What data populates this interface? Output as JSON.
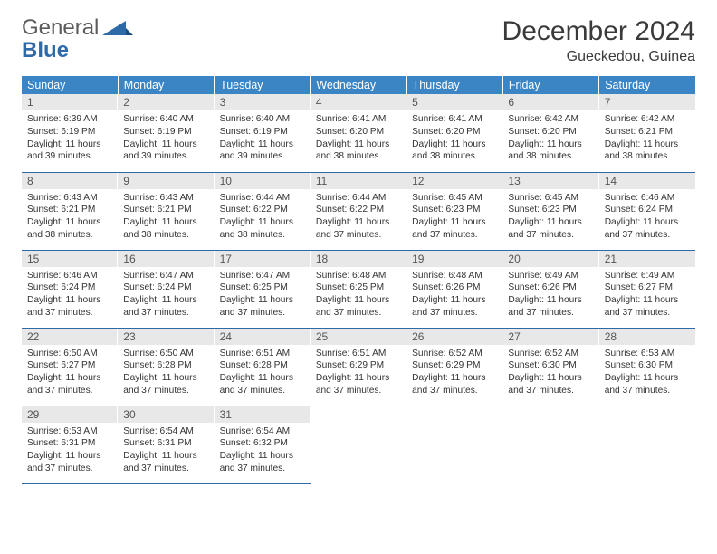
{
  "brand": {
    "line1": "General",
    "line2": "Blue"
  },
  "colors": {
    "header_bg": "#3b85c5",
    "rule": "#2f6aa8",
    "daynum_bg": "#e8e8e8",
    "logo_gray": "#5b5b5b",
    "logo_blue": "#2f6aa8"
  },
  "title": "December 2024",
  "location": "Gueckedou, Guinea",
  "days_of_week": [
    "Sunday",
    "Monday",
    "Tuesday",
    "Wednesday",
    "Thursday",
    "Friday",
    "Saturday"
  ],
  "weeks": [
    [
      {
        "n": "1",
        "sunrise": "6:39 AM",
        "sunset": "6:19 PM",
        "daylight": "11 hours and 39 minutes."
      },
      {
        "n": "2",
        "sunrise": "6:40 AM",
        "sunset": "6:19 PM",
        "daylight": "11 hours and 39 minutes."
      },
      {
        "n": "3",
        "sunrise": "6:40 AM",
        "sunset": "6:19 PM",
        "daylight": "11 hours and 39 minutes."
      },
      {
        "n": "4",
        "sunrise": "6:41 AM",
        "sunset": "6:20 PM",
        "daylight": "11 hours and 38 minutes."
      },
      {
        "n": "5",
        "sunrise": "6:41 AM",
        "sunset": "6:20 PM",
        "daylight": "11 hours and 38 minutes."
      },
      {
        "n": "6",
        "sunrise": "6:42 AM",
        "sunset": "6:20 PM",
        "daylight": "11 hours and 38 minutes."
      },
      {
        "n": "7",
        "sunrise": "6:42 AM",
        "sunset": "6:21 PM",
        "daylight": "11 hours and 38 minutes."
      }
    ],
    [
      {
        "n": "8",
        "sunrise": "6:43 AM",
        "sunset": "6:21 PM",
        "daylight": "11 hours and 38 minutes."
      },
      {
        "n": "9",
        "sunrise": "6:43 AM",
        "sunset": "6:21 PM",
        "daylight": "11 hours and 38 minutes."
      },
      {
        "n": "10",
        "sunrise": "6:44 AM",
        "sunset": "6:22 PM",
        "daylight": "11 hours and 38 minutes."
      },
      {
        "n": "11",
        "sunrise": "6:44 AM",
        "sunset": "6:22 PM",
        "daylight": "11 hours and 37 minutes."
      },
      {
        "n": "12",
        "sunrise": "6:45 AM",
        "sunset": "6:23 PM",
        "daylight": "11 hours and 37 minutes."
      },
      {
        "n": "13",
        "sunrise": "6:45 AM",
        "sunset": "6:23 PM",
        "daylight": "11 hours and 37 minutes."
      },
      {
        "n": "14",
        "sunrise": "6:46 AM",
        "sunset": "6:24 PM",
        "daylight": "11 hours and 37 minutes."
      }
    ],
    [
      {
        "n": "15",
        "sunrise": "6:46 AM",
        "sunset": "6:24 PM",
        "daylight": "11 hours and 37 minutes."
      },
      {
        "n": "16",
        "sunrise": "6:47 AM",
        "sunset": "6:24 PM",
        "daylight": "11 hours and 37 minutes."
      },
      {
        "n": "17",
        "sunrise": "6:47 AM",
        "sunset": "6:25 PM",
        "daylight": "11 hours and 37 minutes."
      },
      {
        "n": "18",
        "sunrise": "6:48 AM",
        "sunset": "6:25 PM",
        "daylight": "11 hours and 37 minutes."
      },
      {
        "n": "19",
        "sunrise": "6:48 AM",
        "sunset": "6:26 PM",
        "daylight": "11 hours and 37 minutes."
      },
      {
        "n": "20",
        "sunrise": "6:49 AM",
        "sunset": "6:26 PM",
        "daylight": "11 hours and 37 minutes."
      },
      {
        "n": "21",
        "sunrise": "6:49 AM",
        "sunset": "6:27 PM",
        "daylight": "11 hours and 37 minutes."
      }
    ],
    [
      {
        "n": "22",
        "sunrise": "6:50 AM",
        "sunset": "6:27 PM",
        "daylight": "11 hours and 37 minutes."
      },
      {
        "n": "23",
        "sunrise": "6:50 AM",
        "sunset": "6:28 PM",
        "daylight": "11 hours and 37 minutes."
      },
      {
        "n": "24",
        "sunrise": "6:51 AM",
        "sunset": "6:28 PM",
        "daylight": "11 hours and 37 minutes."
      },
      {
        "n": "25",
        "sunrise": "6:51 AM",
        "sunset": "6:29 PM",
        "daylight": "11 hours and 37 minutes."
      },
      {
        "n": "26",
        "sunrise": "6:52 AM",
        "sunset": "6:29 PM",
        "daylight": "11 hours and 37 minutes."
      },
      {
        "n": "27",
        "sunrise": "6:52 AM",
        "sunset": "6:30 PM",
        "daylight": "11 hours and 37 minutes."
      },
      {
        "n": "28",
        "sunrise": "6:53 AM",
        "sunset": "6:30 PM",
        "daylight": "11 hours and 37 minutes."
      }
    ],
    [
      {
        "n": "29",
        "sunrise": "6:53 AM",
        "sunset": "6:31 PM",
        "daylight": "11 hours and 37 minutes."
      },
      {
        "n": "30",
        "sunrise": "6:54 AM",
        "sunset": "6:31 PM",
        "daylight": "11 hours and 37 minutes."
      },
      {
        "n": "31",
        "sunrise": "6:54 AM",
        "sunset": "6:32 PM",
        "daylight": "11 hours and 37 minutes."
      },
      null,
      null,
      null,
      null
    ]
  ],
  "labels": {
    "sunrise_prefix": "Sunrise: ",
    "sunset_prefix": "Sunset: ",
    "daylight_prefix": "Daylight: "
  }
}
